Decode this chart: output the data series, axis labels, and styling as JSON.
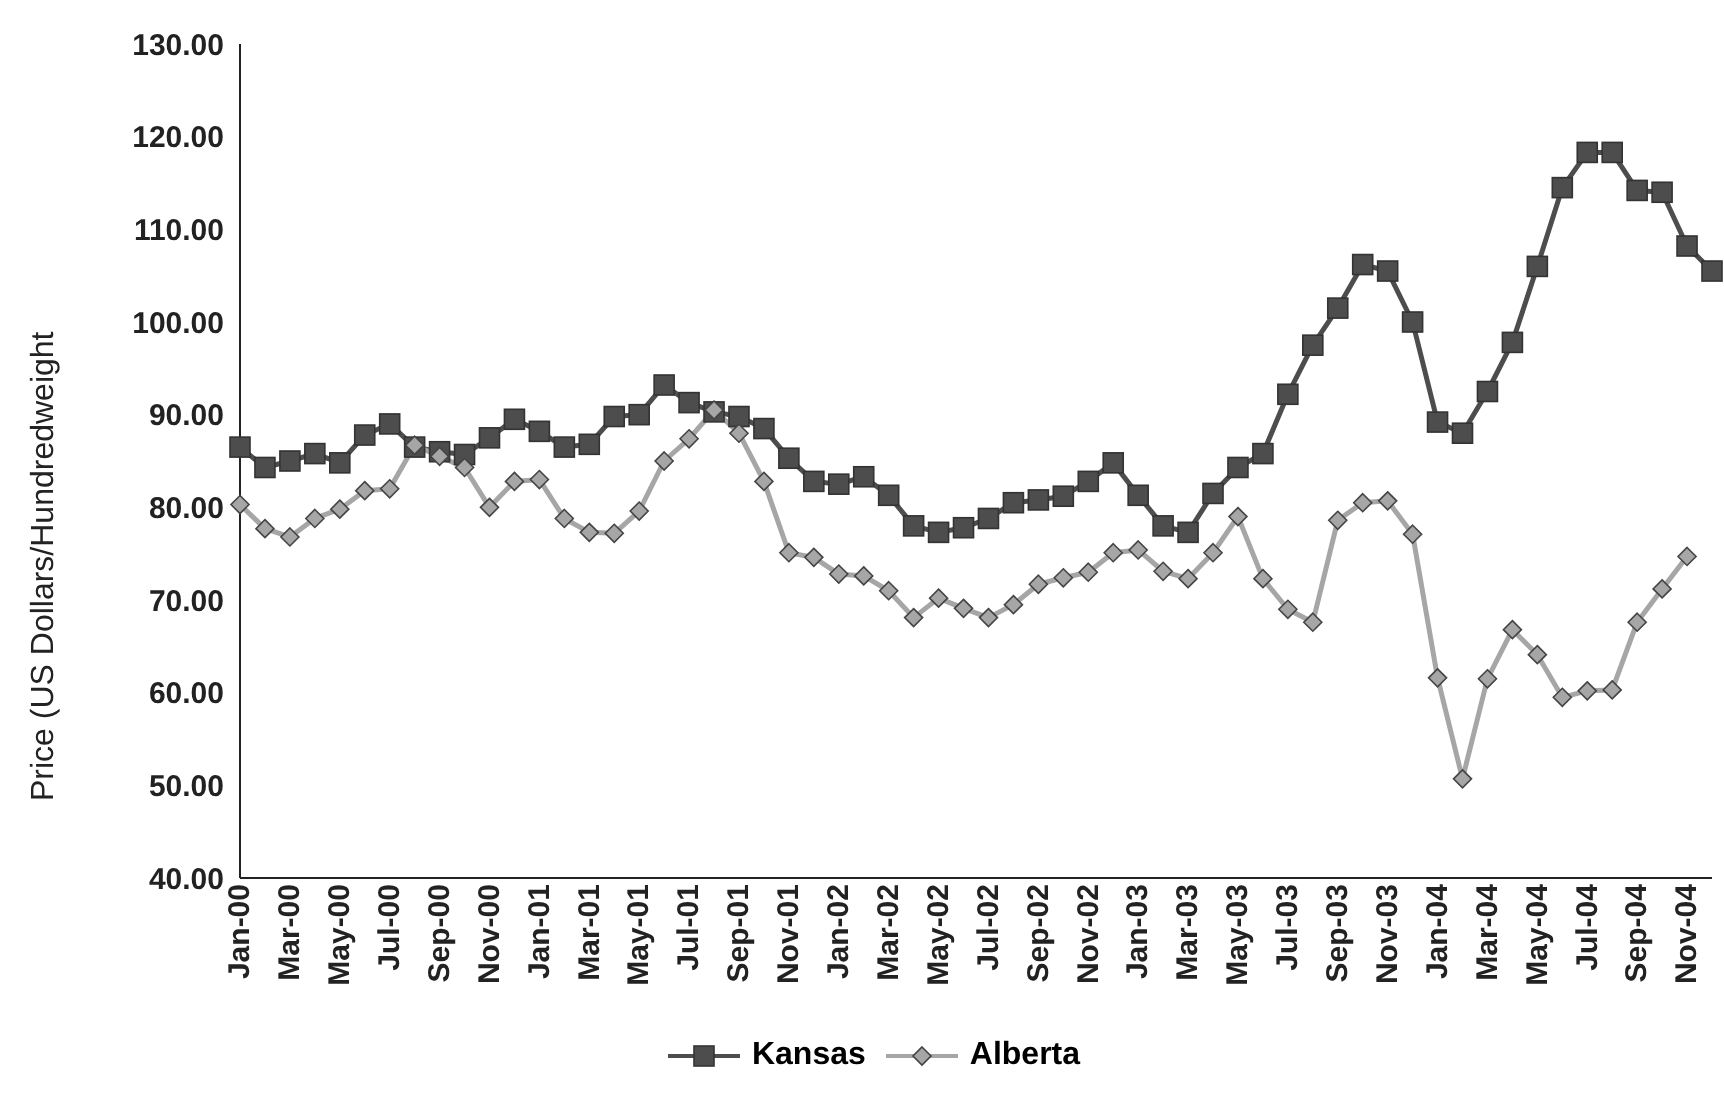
{
  "chart_data": {
    "type": "line",
    "ylabel": "Price (US Dollars/Hundredweight",
    "categories": [
      "Jan-00",
      null,
      "Mar-00",
      null,
      "May-00",
      null,
      "Jul-00",
      null,
      "Sep-00",
      null,
      "Nov-00",
      null,
      "Jan-01",
      null,
      "Mar-01",
      null,
      "May-01",
      null,
      "Jul-01",
      null,
      "Sep-01",
      null,
      "Nov-01",
      null,
      "Jan-02",
      null,
      "Mar-02",
      null,
      "May-02",
      null,
      "Jul-02",
      null,
      "Sep-02",
      null,
      "Nov-02",
      null,
      "Jan-03",
      null,
      "Mar-03",
      null,
      "May-03",
      null,
      "Jul-03",
      null,
      "Sep-03",
      null,
      "Nov-03",
      null,
      "Jan-04",
      null,
      "Mar-04",
      null,
      "May-04",
      null,
      "Jul-04",
      null,
      "Sep-04",
      null,
      "Nov-04",
      null
    ],
    "series": [
      {
        "name": "Kansas",
        "color": "#4d4d4d",
        "marker": "square",
        "values": [
          86.5,
          84.3,
          85,
          85.8,
          84.8,
          87.8,
          89,
          86.5,
          86,
          85.7,
          87.5,
          89.5,
          88.2,
          86.5,
          86.8,
          89.8,
          90,
          93.2,
          91.3,
          90.3,
          89.8,
          88.5,
          85.3,
          82.8,
          82.5,
          83.3,
          81.3,
          78,
          77.3,
          77.8,
          78.8,
          80.5,
          80.8,
          81.2,
          82.8,
          84.8,
          81.3,
          78,
          77.3,
          81.5,
          84.3,
          85.8,
          92.2,
          97.5,
          101.5,
          106.2,
          105.5,
          100,
          89.2,
          88,
          92.5,
          97.8,
          106,
          114.5,
          118.3,
          118.3,
          114.2,
          114,
          108.2,
          105.5
        ]
      },
      {
        "name": "Alberta",
        "color": "#a6a6a6",
        "marker": "diamond",
        "values": [
          80.3,
          77.7,
          76.8,
          78.8,
          79.8,
          81.8,
          82,
          86.7,
          85.5,
          84.3,
          80,
          82.8,
          83,
          78.8,
          77.3,
          77.2,
          79.6,
          85,
          87.4,
          90.5,
          88,
          82.8,
          75.1,
          74.6,
          72.8,
          72.6,
          71,
          68.1,
          70.2,
          69.1,
          68.1,
          69.5,
          71.7,
          72.4,
          73,
          75.1,
          75.4,
          73.1,
          72.3,
          75.1,
          79,
          72.3,
          69,
          67.6,
          78.6,
          80.5,
          80.7,
          77.1,
          61.6,
          50.7,
          61.5,
          66.8,
          64.1,
          59.5,
          60.2,
          60.3,
          67.6,
          71.2,
          74.7,
          null
        ]
      }
    ],
    "ylim": [
      40,
      130
    ],
    "yticks": [
      {
        "value": 40,
        "label": "40.00"
      },
      {
        "value": 50,
        "label": "50.00"
      },
      {
        "value": 60,
        "label": "60.00"
      },
      {
        "value": 70,
        "label": "70.00"
      },
      {
        "value": 80,
        "label": "80.00"
      },
      {
        "value": 90,
        "label": "90.00"
      },
      {
        "value": 100,
        "label": "100.00"
      },
      {
        "value": 110,
        "label": "110.00"
      },
      {
        "value": 120,
        "label": "120.00"
      },
      {
        "value": 130,
        "label": "130.00"
      }
    ],
    "grid": false,
    "legend": "bottom"
  }
}
